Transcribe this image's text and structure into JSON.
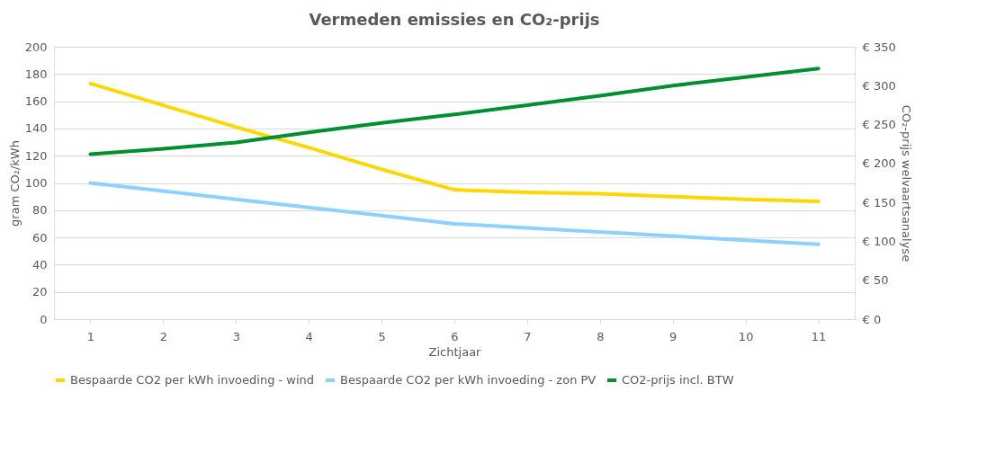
{
  "chart_data": {
    "type": "line",
    "title": "Vermeden emissies en CO₂-prijs",
    "xlabel": "Zichtjaar",
    "ylabel": "gram CO₂/kWh",
    "y2label": "CO₂-prijs welvaartsanalyse",
    "categories": [
      "1",
      "2",
      "3",
      "4",
      "5",
      "6",
      "7",
      "8",
      "9",
      "10",
      "11"
    ],
    "series": [
      {
        "name": "Bespaarde CO2 per kWh invoeding - wind",
        "color": "#ffd700",
        "values": [
          173,
          157,
          141,
          126,
          110,
          95,
          93,
          92,
          90,
          88,
          86.5
        ]
      },
      {
        "name": "Bespaarde CO2 per kWh invoeding - zon PV",
        "color": "#8ed0ff",
        "values": [
          100,
          94,
          88,
          82,
          76,
          70,
          67,
          64,
          61,
          58,
          55
        ]
      },
      {
        "name": "CO2-prijs incl. BTW",
        "color": "#008f2f",
        "axis": "y2",
        "values": [
          212,
          219,
          227,
          240,
          252,
          263,
          275,
          287,
          300,
          311,
          322
        ]
      }
    ],
    "ylim": [
      0,
      200
    ],
    "yticks": [
      0,
      20,
      40,
      60,
      80,
      100,
      120,
      140,
      160,
      180,
      200
    ],
    "y2lim": [
      0,
      350
    ],
    "y2ticks": [
      {
        "value": 0,
        "label": "€ 0"
      },
      {
        "value": 50,
        "label": "€ 50"
      },
      {
        "value": 100,
        "label": "€ 100"
      },
      {
        "value": 150,
        "label": "€ 150"
      },
      {
        "value": 200,
        "label": "€ 200"
      },
      {
        "value": 250,
        "label": "€ 250"
      },
      {
        "value": 300,
        "label": "€ 300"
      },
      {
        "value": 350,
        "label": "€ 350"
      }
    ],
    "grid": "y",
    "legend": "bottom",
    "marker": "none",
    "line_style": "solid"
  }
}
